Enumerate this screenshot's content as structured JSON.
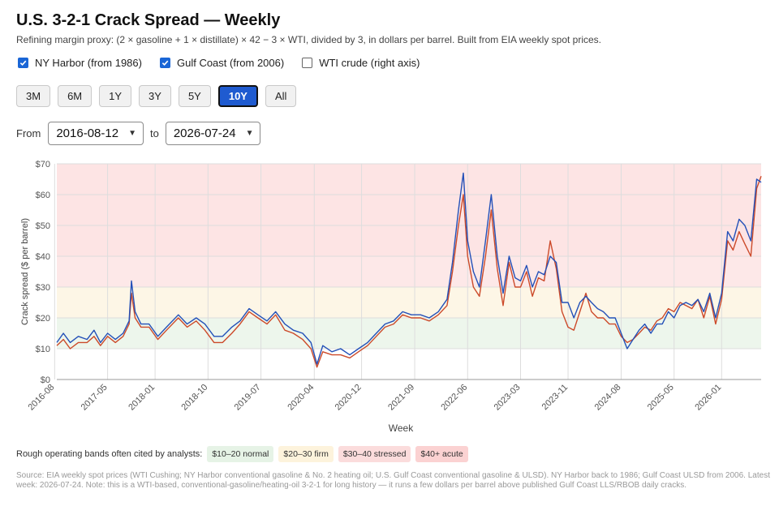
{
  "header": {
    "title": "U.S. 3-2-1 Crack Spread — Weekly",
    "subtitle": "Refining margin proxy: (2 × gasoline + 1 × distillate) × 42 − 3 × WTI, divided by 3, in dollars per barrel. Built from EIA weekly spot prices."
  },
  "toggles": [
    {
      "label": "NY Harbor (from 1986)",
      "checked": true
    },
    {
      "label": "Gulf Coast (from 2006)",
      "checked": true
    },
    {
      "label": "WTI crude (right axis)",
      "checked": false
    }
  ],
  "ranges": [
    "3M",
    "6M",
    "1Y",
    "3Y",
    "5Y",
    "10Y",
    "All"
  ],
  "active_range": "10Y",
  "date_range": {
    "from_label": "From",
    "from_value": "2016-08-12",
    "to_label": "to",
    "to_value": "2026-07-24"
  },
  "legend_bands": {
    "intro": "Rough operating bands often cited by analysts:",
    "items": [
      {
        "label": "$10–20 normal",
        "color": "#e6f3e6"
      },
      {
        "label": "$20–30 firm",
        "color": "#fdf3dc"
      },
      {
        "label": "$30–40 stressed",
        "color": "#fbdcdc"
      },
      {
        "label": "$40+ acute",
        "color": "#fbd2d2"
      }
    ]
  },
  "source": "Source: EIA weekly spot prices (WTI Cushing; NY Harbor conventional gasoline & No. 2 heating oil; U.S. Gulf Coast conventional gasoline & ULSD). NY Harbor back to 1986; Gulf Coast ULSD from 2006. Latest week: 2026-07-24. Note: this is a WTI-based, conventional-gasoline/heating-oil 3-2-1 for long history — it runs a few dollars per barrel above published Gulf Coast LLS/RBOB daily cracks.",
  "colors": {
    "ny_harbor": "#2350b8",
    "gulf_coast": "#cc4a2a",
    "band_normal": "#edf6ec",
    "band_firm": "#fdf6e6",
    "band_stressed": "#fde8e8",
    "band_acute": "#fde4e4"
  },
  "chart_data": {
    "type": "line",
    "xlabel": "Week",
    "ylabel": "Crack spread ($ per barrel)",
    "ylim": [
      0,
      70
    ],
    "xlim": [
      "2016-08-12",
      "2026-07-24"
    ],
    "y_ticks": [
      0,
      10,
      20,
      30,
      40,
      50,
      60,
      70
    ],
    "y_tick_labels": [
      "$0",
      "$10",
      "$20",
      "$30",
      "$40",
      "$50",
      "$60",
      "$70"
    ],
    "x_ticks": [
      "2016-08",
      "2017-05",
      "2018-01",
      "2018-10",
      "2019-07",
      "2020-04",
      "2020-12",
      "2021-09",
      "2022-06",
      "2023-03",
      "2023-11",
      "2024-08",
      "2025-05",
      "2026-01"
    ],
    "bands": [
      {
        "from": 10,
        "to": 20,
        "name": "normal"
      },
      {
        "from": 20,
        "to": 30,
        "name": "firm"
      },
      {
        "from": 30,
        "to": 40,
        "name": "stressed"
      },
      {
        "from": 40,
        "to": 70,
        "name": "acute"
      }
    ],
    "grid": true,
    "series": [
      {
        "name": "NY Harbor (from 1986)",
        "points": [
          [
            "2016-08-12",
            12
          ],
          [
            "2016-09-15",
            15
          ],
          [
            "2016-10-20",
            12
          ],
          [
            "2016-12-01",
            14
          ],
          [
            "2017-01-15",
            13
          ],
          [
            "2017-02-20",
            16
          ],
          [
            "2017-03-25",
            12
          ],
          [
            "2017-05-01",
            15
          ],
          [
            "2017-06-10",
            13
          ],
          [
            "2017-07-20",
            15
          ],
          [
            "2017-08-20",
            19
          ],
          [
            "2017-09-01",
            32
          ],
          [
            "2017-09-20",
            22
          ],
          [
            "2017-10-20",
            18
          ],
          [
            "2017-12-01",
            18
          ],
          [
            "2018-01-15",
            14
          ],
          [
            "2018-03-01",
            17
          ],
          [
            "2018-05-01",
            21
          ],
          [
            "2018-06-15",
            18
          ],
          [
            "2018-08-01",
            20
          ],
          [
            "2018-09-15",
            18
          ],
          [
            "2018-11-01",
            14
          ],
          [
            "2018-12-15",
            14
          ],
          [
            "2019-02-01",
            17
          ],
          [
            "2019-03-15",
            19
          ],
          [
            "2019-05-01",
            23
          ],
          [
            "2019-06-15",
            21
          ],
          [
            "2019-08-01",
            19
          ],
          [
            "2019-09-15",
            22
          ],
          [
            "2019-11-01",
            18
          ],
          [
            "2019-12-15",
            16
          ],
          [
            "2020-02-01",
            15
          ],
          [
            "2020-03-15",
            12
          ],
          [
            "2020-04-15",
            5
          ],
          [
            "2020-05-15",
            11
          ],
          [
            "2020-07-01",
            9
          ],
          [
            "2020-08-15",
            10
          ],
          [
            "2020-10-01",
            8
          ],
          [
            "2020-11-15",
            10
          ],
          [
            "2021-01-01",
            12
          ],
          [
            "2021-02-15",
            15
          ],
          [
            "2021-04-01",
            18
          ],
          [
            "2021-05-15",
            19
          ],
          [
            "2021-07-01",
            22
          ],
          [
            "2021-08-15",
            21
          ],
          [
            "2021-10-01",
            21
          ],
          [
            "2021-11-15",
            20
          ],
          [
            "2022-01-01",
            22
          ],
          [
            "2022-02-15",
            26
          ],
          [
            "2022-03-15",
            38
          ],
          [
            "2022-04-15",
            55
          ],
          [
            "2022-05-10",
            67
          ],
          [
            "2022-06-01",
            45
          ],
          [
            "2022-07-01",
            35
          ],
          [
            "2022-08-01",
            30
          ],
          [
            "2022-09-01",
            45
          ],
          [
            "2022-10-01",
            60
          ],
          [
            "2022-11-01",
            40
          ],
          [
            "2022-12-01",
            28
          ],
          [
            "2023-01-01",
            40
          ],
          [
            "2023-02-01",
            33
          ],
          [
            "2023-03-01",
            32
          ],
          [
            "2023-04-01",
            37
          ],
          [
            "2023-05-01",
            30
          ],
          [
            "2023-06-01",
            35
          ],
          [
            "2023-07-01",
            34
          ],
          [
            "2023-08-01",
            40
          ],
          [
            "2023-09-01",
            38
          ],
          [
            "2023-10-01",
            25
          ],
          [
            "2023-11-01",
            25
          ],
          [
            "2023-12-01",
            20
          ],
          [
            "2024-01-01",
            25
          ],
          [
            "2024-02-01",
            27
          ],
          [
            "2024-03-01",
            25
          ],
          [
            "2024-04-01",
            23
          ],
          [
            "2024-05-01",
            22
          ],
          [
            "2024-06-01",
            20
          ],
          [
            "2024-07-01",
            20
          ],
          [
            "2024-08-01",
            15
          ],
          [
            "2024-09-01",
            10
          ],
          [
            "2024-10-01",
            13
          ],
          [
            "2024-11-01",
            16
          ],
          [
            "2024-12-01",
            18
          ],
          [
            "2025-01-01",
            15
          ],
          [
            "2025-02-01",
            18
          ],
          [
            "2025-03-01",
            18
          ],
          [
            "2025-04-01",
            22
          ],
          [
            "2025-05-01",
            20
          ],
          [
            "2025-06-01",
            24
          ],
          [
            "2025-07-01",
            25
          ],
          [
            "2025-08-01",
            24
          ],
          [
            "2025-09-01",
            26
          ],
          [
            "2025-10-01",
            22
          ],
          [
            "2025-11-01",
            28
          ],
          [
            "2025-12-01",
            20
          ],
          [
            "2026-01-01",
            28
          ],
          [
            "2026-02-01",
            48
          ],
          [
            "2026-03-01",
            45
          ],
          [
            "2026-04-01",
            52
          ],
          [
            "2026-05-01",
            50
          ],
          [
            "2026-06-01",
            45
          ],
          [
            "2026-07-01",
            65
          ],
          [
            "2026-07-24",
            64
          ]
        ]
      },
      {
        "name": "Gulf Coast (from 2006)",
        "points": [
          [
            "2016-08-12",
            11
          ],
          [
            "2016-09-15",
            13
          ],
          [
            "2016-10-20",
            10
          ],
          [
            "2016-12-01",
            12
          ],
          [
            "2017-01-15",
            12
          ],
          [
            "2017-02-20",
            14
          ],
          [
            "2017-03-25",
            11
          ],
          [
            "2017-05-01",
            14
          ],
          [
            "2017-06-10",
            12
          ],
          [
            "2017-07-20",
            14
          ],
          [
            "2017-08-20",
            18
          ],
          [
            "2017-09-01",
            28
          ],
          [
            "2017-09-20",
            20
          ],
          [
            "2017-10-20",
            17
          ],
          [
            "2017-12-01",
            17
          ],
          [
            "2018-01-15",
            13
          ],
          [
            "2018-03-01",
            16
          ],
          [
            "2018-05-01",
            20
          ],
          [
            "2018-06-15",
            17
          ],
          [
            "2018-08-01",
            19
          ],
          [
            "2018-09-15",
            16
          ],
          [
            "2018-11-01",
            12
          ],
          [
            "2018-12-15",
            12
          ],
          [
            "2019-02-01",
            15
          ],
          [
            "2019-03-15",
            18
          ],
          [
            "2019-05-01",
            22
          ],
          [
            "2019-06-15",
            20
          ],
          [
            "2019-08-01",
            18
          ],
          [
            "2019-09-15",
            21
          ],
          [
            "2019-11-01",
            16
          ],
          [
            "2019-12-15",
            15
          ],
          [
            "2020-02-01",
            13
          ],
          [
            "2020-03-15",
            10
          ],
          [
            "2020-04-15",
            4
          ],
          [
            "2020-05-15",
            9
          ],
          [
            "2020-07-01",
            8
          ],
          [
            "2020-08-15",
            8
          ],
          [
            "2020-10-01",
            7
          ],
          [
            "2020-11-15",
            9
          ],
          [
            "2021-01-01",
            11
          ],
          [
            "2021-02-15",
            14
          ],
          [
            "2021-04-01",
            17
          ],
          [
            "2021-05-15",
            18
          ],
          [
            "2021-07-01",
            21
          ],
          [
            "2021-08-15",
            20
          ],
          [
            "2021-10-01",
            20
          ],
          [
            "2021-11-15",
            19
          ],
          [
            "2022-01-01",
            21
          ],
          [
            "2022-02-15",
            24
          ],
          [
            "2022-03-15",
            35
          ],
          [
            "2022-04-15",
            50
          ],
          [
            "2022-05-10",
            60
          ],
          [
            "2022-06-01",
            40
          ],
          [
            "2022-07-01",
            30
          ],
          [
            "2022-08-01",
            27
          ],
          [
            "2022-09-01",
            40
          ],
          [
            "2022-10-01",
            55
          ],
          [
            "2022-11-01",
            36
          ],
          [
            "2022-12-01",
            24
          ],
          [
            "2023-01-01",
            38
          ],
          [
            "2023-02-01",
            30
          ],
          [
            "2023-03-01",
            30
          ],
          [
            "2023-04-01",
            35
          ],
          [
            "2023-05-01",
            27
          ],
          [
            "2023-06-01",
            33
          ],
          [
            "2023-07-01",
            32
          ],
          [
            "2023-08-01",
            45
          ],
          [
            "2023-09-01",
            36
          ],
          [
            "2023-10-01",
            22
          ],
          [
            "2023-11-01",
            17
          ],
          [
            "2023-12-01",
            16
          ],
          [
            "2024-01-01",
            22
          ],
          [
            "2024-02-01",
            28
          ],
          [
            "2024-03-01",
            22
          ],
          [
            "2024-04-01",
            20
          ],
          [
            "2024-05-01",
            20
          ],
          [
            "2024-06-01",
            18
          ],
          [
            "2024-07-01",
            18
          ],
          [
            "2024-08-01",
            14
          ],
          [
            "2024-09-01",
            12
          ],
          [
            "2024-10-01",
            13
          ],
          [
            "2024-11-01",
            15
          ],
          [
            "2024-12-01",
            17
          ],
          [
            "2025-01-01",
            16
          ],
          [
            "2025-02-01",
            19
          ],
          [
            "2025-03-01",
            20
          ],
          [
            "2025-04-01",
            23
          ],
          [
            "2025-05-01",
            22
          ],
          [
            "2025-06-01",
            25
          ],
          [
            "2025-07-01",
            24
          ],
          [
            "2025-08-01",
            23
          ],
          [
            "2025-09-01",
            26
          ],
          [
            "2025-10-01",
            20
          ],
          [
            "2025-11-01",
            27
          ],
          [
            "2025-12-01",
            18
          ],
          [
            "2026-01-01",
            26
          ],
          [
            "2026-02-01",
            45
          ],
          [
            "2026-03-01",
            42
          ],
          [
            "2026-04-01",
            48
          ],
          [
            "2026-05-01",
            44
          ],
          [
            "2026-06-01",
            40
          ],
          [
            "2026-07-01",
            62
          ],
          [
            "2026-07-24",
            66
          ]
        ]
      }
    ]
  }
}
